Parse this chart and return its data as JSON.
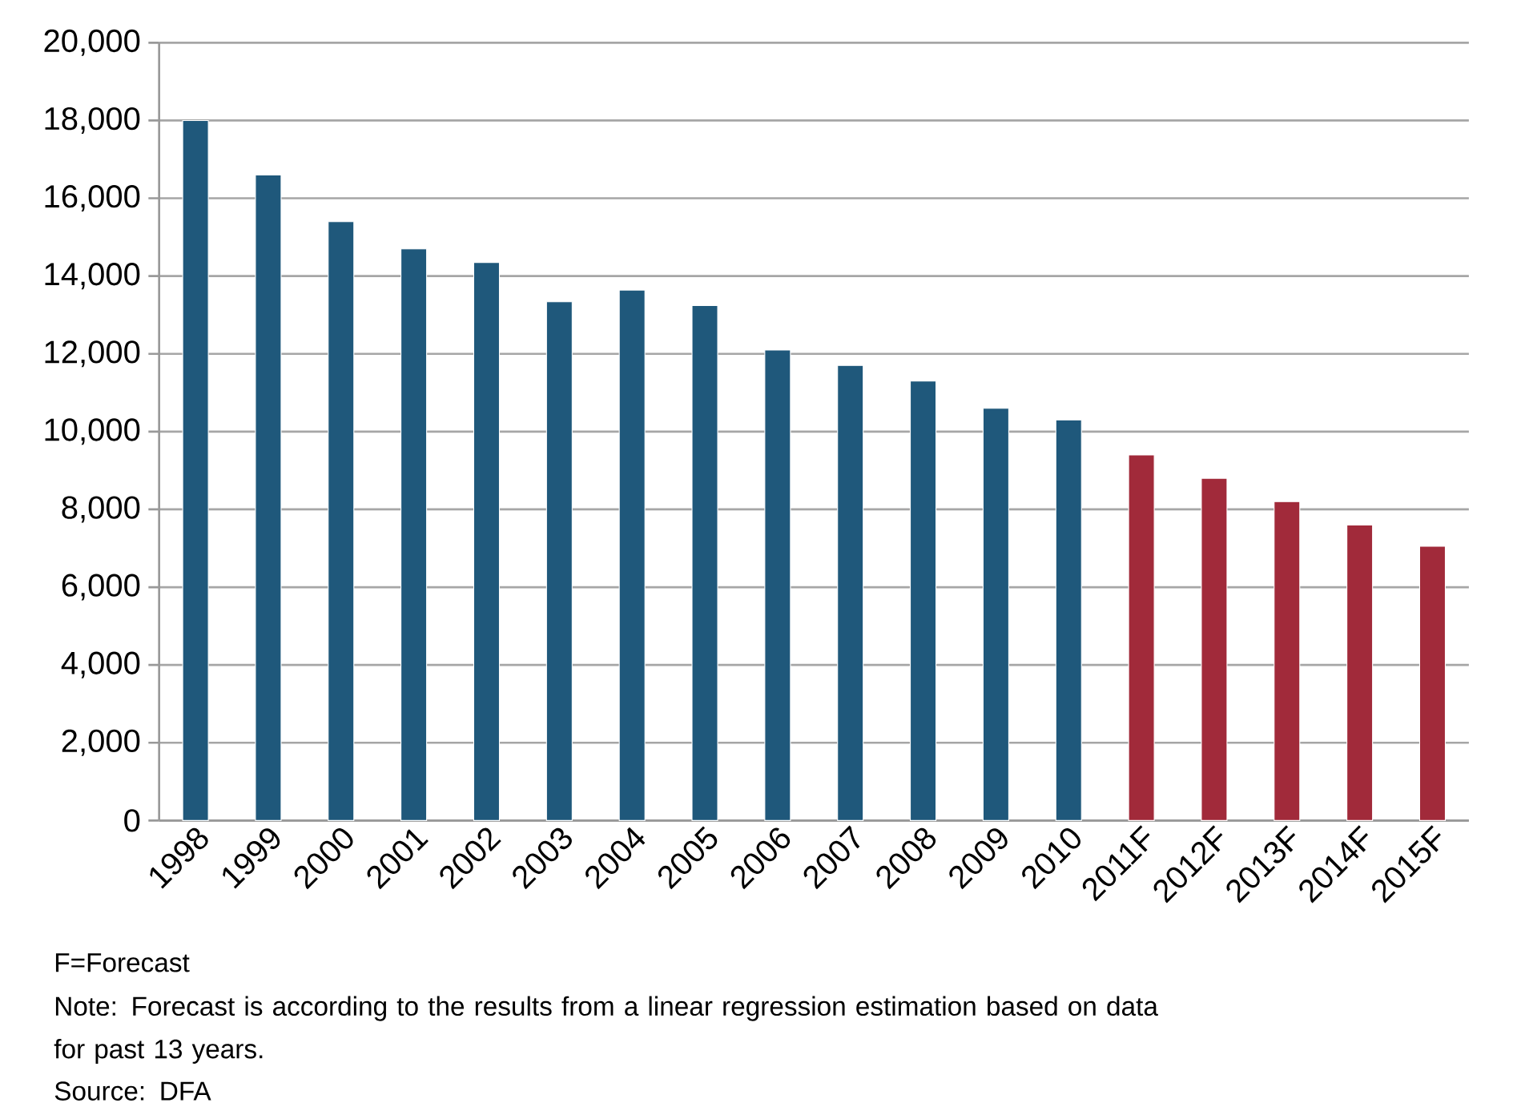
{
  "chart_data": {
    "type": "bar",
    "categories": [
      "1998",
      "1999",
      "2000",
      "2001",
      "2002",
      "2003",
      "2004",
      "2005",
      "2006",
      "2007",
      "2008",
      "2009",
      "2010",
      "2011F",
      "2012F",
      "2013F",
      "2014F",
      "2015F"
    ],
    "values": [
      18000,
      16600,
      15400,
      14700,
      14350,
      13340,
      13640,
      13240,
      12100,
      11700,
      11300,
      10600,
      10300,
      9400,
      8800,
      8200,
      7600,
      7050
    ],
    "colors": [
      "#1f587b",
      "#1f587b",
      "#1f587b",
      "#1f587b",
      "#1f587b",
      "#1f587b",
      "#1f587b",
      "#1f587b",
      "#1f587b",
      "#1f587b",
      "#1f587b",
      "#1f587b",
      "#1f587b",
      "#a12a3a",
      "#a12a3a",
      "#a12a3a",
      "#a12a3a",
      "#a12a3a"
    ],
    "ylim": [
      0,
      20000
    ],
    "yticks": [
      {
        "value": 0,
        "label": "0"
      },
      {
        "value": 2000,
        "label": "2,000"
      },
      {
        "value": 4000,
        "label": "4,000"
      },
      {
        "value": 6000,
        "label": "6,000"
      },
      {
        "value": 8000,
        "label": "8,000"
      },
      {
        "value": 10000,
        "label": "10,000"
      },
      {
        "value": 12000,
        "label": "12,000"
      },
      {
        "value": 14000,
        "label": "14,000"
      },
      {
        "value": 16000,
        "label": "16,000"
      },
      {
        "value": 18000,
        "label": "18,000"
      },
      {
        "value": 20000,
        "label": "20,000"
      }
    ],
    "grid": "y",
    "annotations": [
      "F=Forecast",
      "Note: Forecast is according to the results from a linear regression estimation based on data for past 13 years.",
      "Source: DFA"
    ]
  }
}
